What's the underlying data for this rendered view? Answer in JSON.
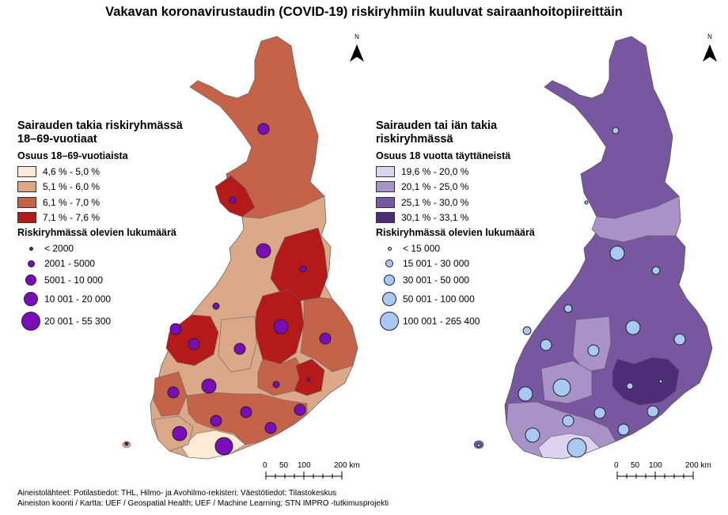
{
  "title": "Vakavan koronavirustaudin (COVID-19) riskiryhmiin kuuluvat sairaanhoitopiireittäin",
  "left_map": {
    "heading_line1": "Sairauden takia riskiryhmässä",
    "heading_line2": "18–69-vuotiaat",
    "share_title": "Osuus 18–69-vuotiaista",
    "classes": [
      {
        "label": "4,6 % - 5,0 %",
        "color": "#fdebd5"
      },
      {
        "label": "5,1 % - 6,0 %",
        "color": "#dba888"
      },
      {
        "label": "6,1 % - 7,0 %",
        "color": "#c4624a"
      },
      {
        "label": "7,1 % - 7,6 %",
        "color": "#b41a1a"
      }
    ],
    "count_title": "Riskiryhmässä olevien lukumäärä",
    "count_classes": [
      "< 2000",
      "2001 - 5000",
      "5001 - 10 000",
      "10 001 - 20 000",
      "20 001 - 55 300"
    ],
    "symbol_color": "#7b0db8"
  },
  "right_map": {
    "heading_line1": "Sairauden tai iän takia",
    "heading_line2": "riskiryhmässä",
    "share_title": "Osuus 18 vuotta täyttäneistä",
    "classes": [
      {
        "label": "19,6 % - 20,0 %",
        "color": "#ddd3ee"
      },
      {
        "label": "20,1 % - 25,0 %",
        "color": "#a892c8"
      },
      {
        "label": "25,1 % - 30,0 %",
        "color": "#77579f"
      },
      {
        "label": "30,1 % - 33,1 %",
        "color": "#4e2c78"
      }
    ],
    "count_title": "Riskiryhmässä olevien lukumäärä",
    "count_classes": [
      "< 15 000",
      "15 001 - 30 000",
      "30 001 - 50 000",
      "50 001 - 100 000",
      "100 001 - 265 400"
    ],
    "symbol_color": "#a9c8f4"
  },
  "north_label": "N",
  "scale_labels": [
    "0",
    "50",
    "100",
    "200 km"
  ],
  "sources_line1": "Aineistolähteet: Potilastiedot: THL, Hilmo- ja Avohilmo-rekisteri; Väestötiedot: Tilastokeskus",
  "sources_line2": "Aineiston koonti / Kartta: UEF / Geospatial Health; UEF / Machine Learning; STN IMPRO -tutkimusprojekti"
}
